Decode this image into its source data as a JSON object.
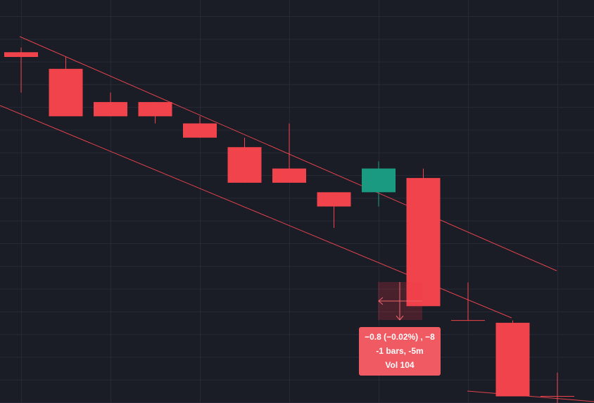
{
  "chart_data": {
    "type": "candlestick",
    "categories": [
      null,
      null,
      null,
      null,
      null,
      null,
      null,
      null,
      null,
      null,
      null,
      null,
      null
    ],
    "open": [
      4003.9,
      4003.55,
      4002.85,
      4002.85,
      4002.4,
      4001.9,
      4001.45,
      4000.95,
      4000.95,
      4001.25,
      3998.25,
      3998.2,
      3996.65
    ],
    "high": [
      4004.0,
      4003.8,
      4003.05,
      4002.85,
      4002.55,
      4002.1,
      4002.4,
      4000.95,
      4001.6,
      4001.45,
      3999.05,
      3998.25,
      3997.15
    ],
    "low": [
      4003.05,
      4002.55,
      4002.55,
      4002.4,
      4002.1,
      4001.15,
      4001.15,
      4000.2,
      4000.65,
      3998.55,
      3998.25,
      3996.65,
      3996.5
    ],
    "close": [
      4003.8,
      4002.55,
      4002.55,
      4002.55,
      4002.1,
      4001.15,
      4001.15,
      4000.65,
      4001.45,
      3998.55,
      3998.25,
      3996.65,
      3996.65
    ],
    "up_color": "#1a9a80",
    "down_color": "#f0434c",
    "ylim": [
      3996.51,
      4005
    ],
    "measure": {
      "lines": [
        "−0.8 (−0.02%) , −8",
        "-1 bars, -5m",
        "Vol 104"
      ]
    }
  }
}
